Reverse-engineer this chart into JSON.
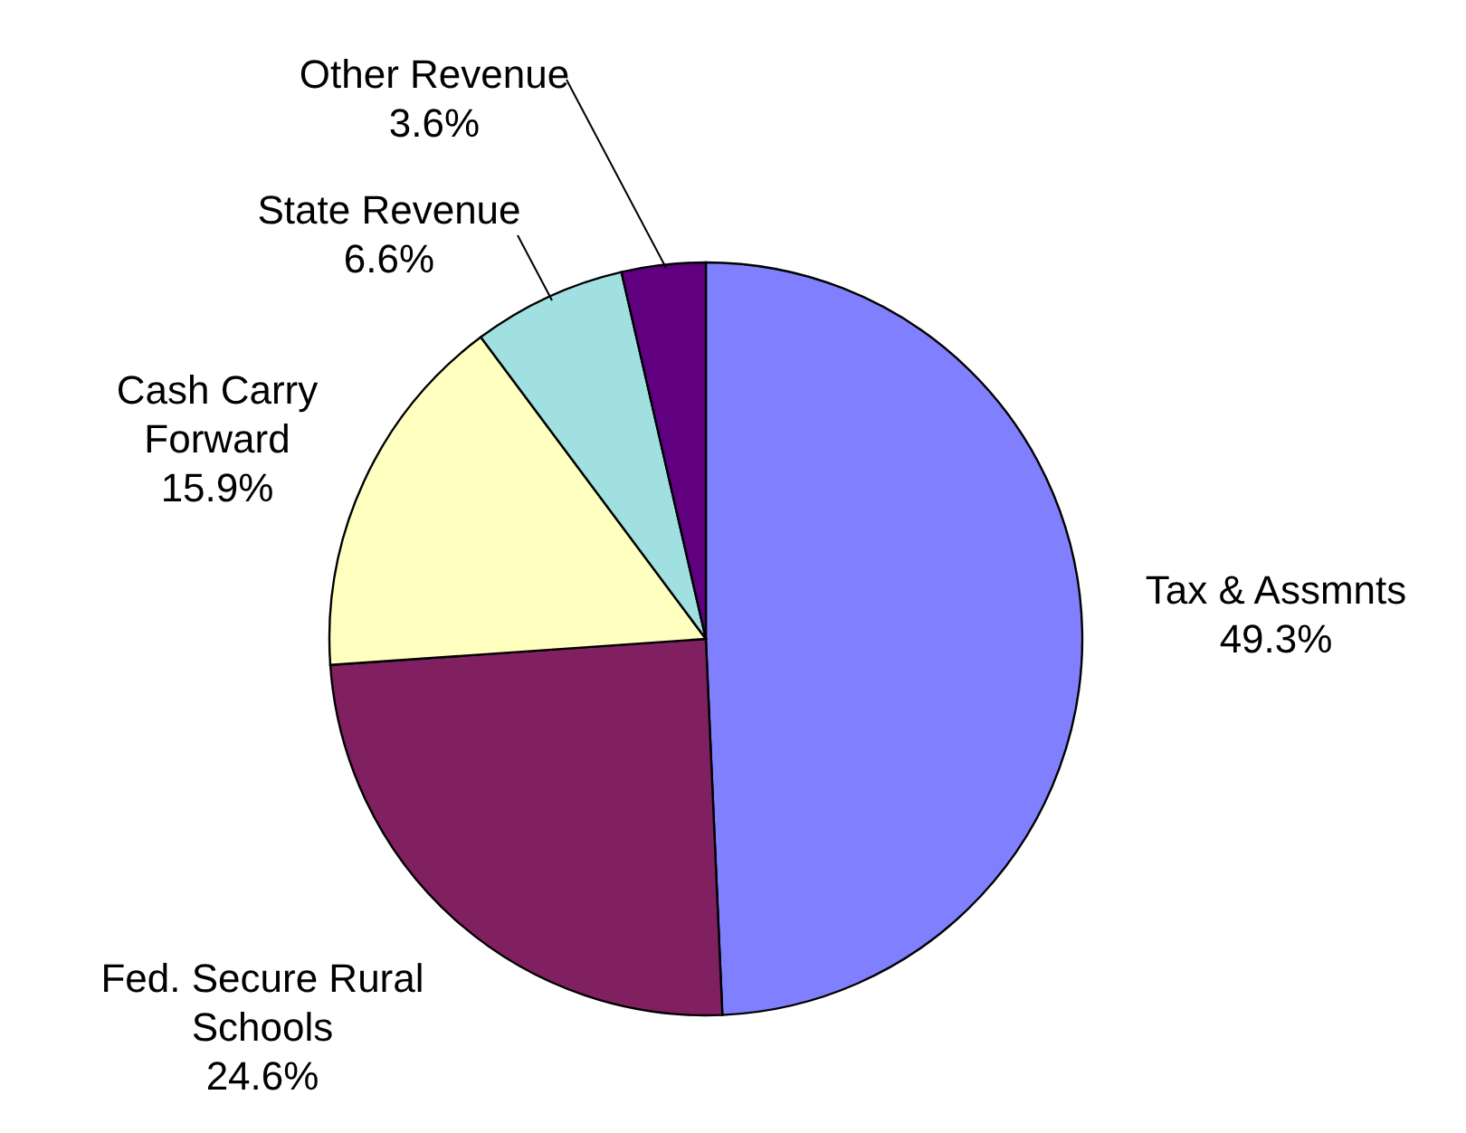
{
  "chart_data": {
    "type": "pie",
    "categories": [
      "Tax & Assmnts",
      "Fed. Secure Rural Schools",
      "Cash Carry Forward",
      "State Revenue",
      "Other Revenue"
    ],
    "values": [
      49.3,
      24.6,
      15.9,
      6.6,
      3.6
    ],
    "value_labels": [
      "49.3%",
      "24.6%",
      "15.9%",
      "6.6%",
      "3.6%"
    ],
    "colors": [
      "#8080ff",
      "#802060",
      "#ffffc0",
      "#a0e0e0",
      "#600080"
    ],
    "legend": false
  }
}
